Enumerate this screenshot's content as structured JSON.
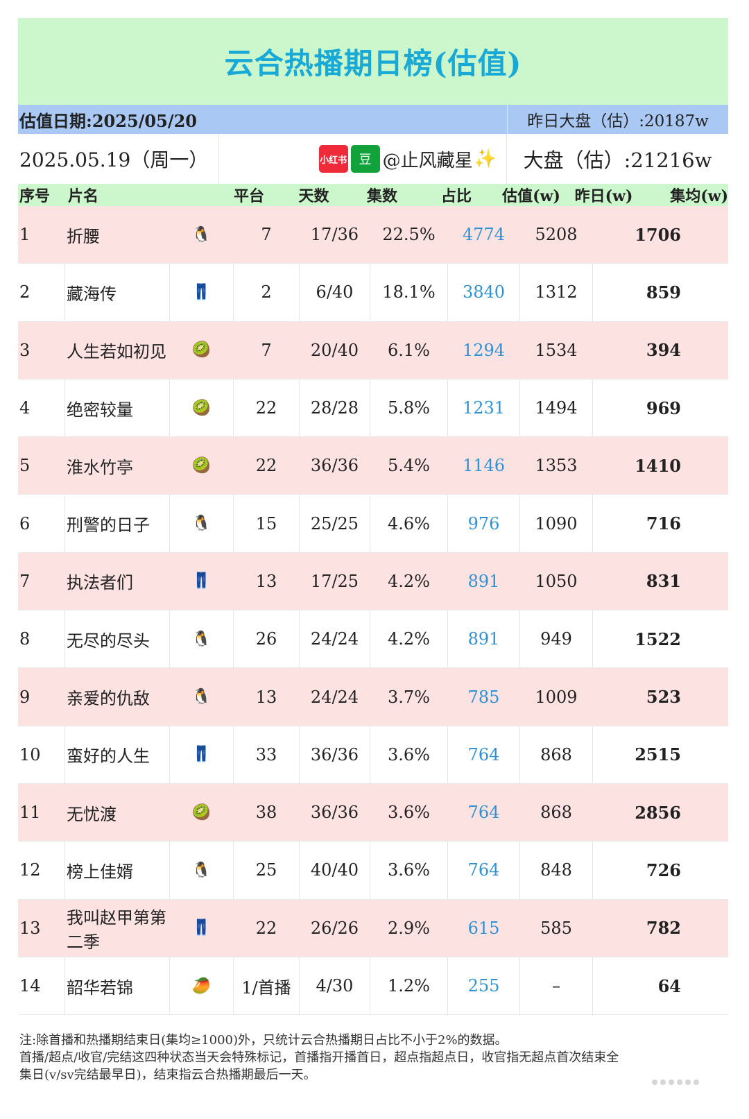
{
  "title": "云合热播期日榜(估值)",
  "estimate_date": "估值日期:2025/05/20",
  "yesterday_total": "昨日大盘（估）:20187w",
  "data_date": "2025.05.19（周一）",
  "author": {
    "xhs_badge": "小红书",
    "douban_badge": "豆",
    "handle": "@止风藏星",
    "sparkle": "✨"
  },
  "total": "大盘（估）:21216w",
  "headers": [
    "序号",
    "片名",
    "平台",
    "天数",
    "集数",
    "占比",
    "估值(w)",
    "昨日(w)",
    "集均(w)"
  ],
  "rows": [
    {
      "rank": "1",
      "title": "折腰",
      "platform": "tencent",
      "days": "7",
      "episodes": "17/36",
      "share": "22.5%",
      "value": "4774",
      "yesterday": "5208",
      "avg": "1706"
    },
    {
      "rank": "2",
      "title": "藏海传",
      "platform": "youku",
      "days": "2",
      "episodes": "6/40",
      "share": "18.1%",
      "value": "3840",
      "yesterday": "1312",
      "avg": "859"
    },
    {
      "rank": "3",
      "title": "人生若如初见",
      "platform": "iqiyi",
      "days": "7",
      "episodes": "20/40",
      "share": "6.1%",
      "value": "1294",
      "yesterday": "1534",
      "avg": "394"
    },
    {
      "rank": "4",
      "title": "绝密较量",
      "platform": "iqiyi",
      "days": "22",
      "episodes": "28/28",
      "share": "5.8%",
      "value": "1231",
      "yesterday": "1494",
      "avg": "969"
    },
    {
      "rank": "5",
      "title": "淮水竹亭",
      "platform": "iqiyi",
      "days": "22",
      "episodes": "36/36",
      "share": "5.4%",
      "value": "1146",
      "yesterday": "1353",
      "avg": "1410"
    },
    {
      "rank": "6",
      "title": "刑警的日子",
      "platform": "tencent",
      "days": "15",
      "episodes": "25/25",
      "share": "4.6%",
      "value": "976",
      "yesterday": "1090",
      "avg": "716"
    },
    {
      "rank": "7",
      "title": "执法者们",
      "platform": "youku",
      "days": "13",
      "episodes": "17/25",
      "share": "4.2%",
      "value": "891",
      "yesterday": "1050",
      "avg": "831"
    },
    {
      "rank": "8",
      "title": "无尽的尽头",
      "platform": "tencent",
      "days": "26",
      "episodes": "24/24",
      "share": "4.2%",
      "value": "891",
      "yesterday": "949",
      "avg": "1522"
    },
    {
      "rank": "9",
      "title": "亲爱的仇敌",
      "platform": "tencent",
      "days": "13",
      "episodes": "24/24",
      "share": "3.7%",
      "value": "785",
      "yesterday": "1009",
      "avg": "523"
    },
    {
      "rank": "10",
      "title": "蛮好的人生",
      "platform": "youku",
      "days": "33",
      "episodes": "36/36",
      "share": "3.6%",
      "value": "764",
      "yesterday": "868",
      "avg": "2515"
    },
    {
      "rank": "11",
      "title": "无忧渡",
      "platform": "iqiyi",
      "days": "38",
      "episodes": "36/36",
      "share": "3.6%",
      "value": "764",
      "yesterday": "868",
      "avg": "2856"
    },
    {
      "rank": "12",
      "title": "榜上佳婿",
      "platform": "tencent",
      "days": "25",
      "episodes": "40/40",
      "share": "3.6%",
      "value": "764",
      "yesterday": "848",
      "avg": "726"
    },
    {
      "rank": "13",
      "title": "我叫赵甲第第二季",
      "platform": "youku",
      "days": "22",
      "episodes": "26/26",
      "share": "2.9%",
      "value": "615",
      "yesterday": "585",
      "avg": "782"
    },
    {
      "rank": "14",
      "title": "韶华若锦",
      "platform": "mango",
      "days": "1/首播",
      "episodes": "4/30",
      "share": "1.2%",
      "value": "255",
      "yesterday": "–",
      "avg": "64"
    }
  ],
  "platform_icons": {
    "tencent": "🐧",
    "youku": "👖",
    "iqiyi": "🥝",
    "mango": "🥭"
  },
  "notes": [
    "注:除首播和热播期结束日(集均≥1000)外，只统计云合热播期日占比不小于2%的数据。",
    "首播/超点/收官/完结这四种状态当天会特殊标记，首播指开播首日，超点指超点日，收官指无超点首次结束全",
    "集日(v/sv完结最早日)，结束指云合热播期最后一天。"
  ]
}
